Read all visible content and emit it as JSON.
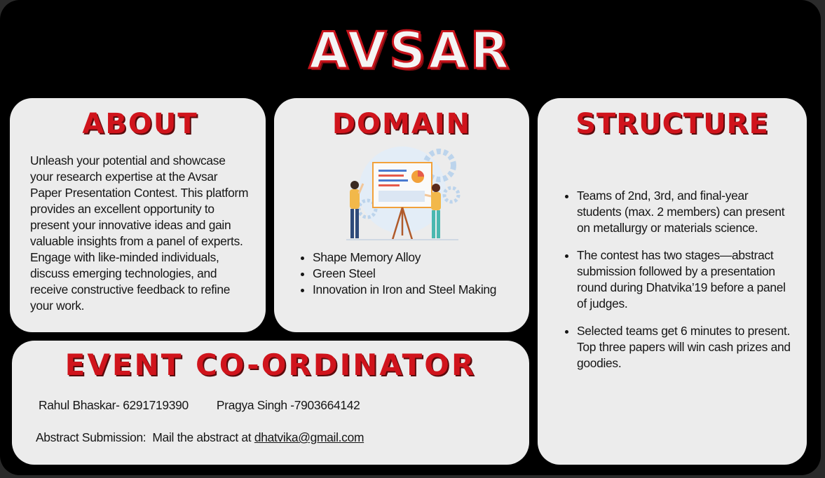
{
  "title": "AVSAR",
  "about": {
    "heading": "ABOUT",
    "text": "Unleash your potential and showcase your research expertise at the Avsar Paper Presentation Contest. This platform provides an excellent opportunity to present your innovative ideas and gain valuable insights from a panel of experts. Engage with like-minded individuals, discuss emerging technologies, and receive constructive feedback to refine your work."
  },
  "domain": {
    "heading": "DOMAIN",
    "items": [
      "Shape Memory Alloy",
      "Green Steel",
      "Innovation in Iron and Steel Making"
    ]
  },
  "structure": {
    "heading": "STRUCTURE",
    "items": [
      "Teams of 2nd, 3rd, and final-year students (max. 2 members) can present on metallurgy or materials science.",
      "The contest has two stages—abstract submission followed by a presentation round during Dhatvika’19 before a panel of judges.",
      "Selected teams get 6 minutes to present. Top three papers will win cash prizes and goodies."
    ]
  },
  "coordinator": {
    "heading": "EVENT CO-ORDINATOR",
    "contact1": "Rahul Bhaskar- 6291719390",
    "contact2": "Pragya Singh -7903664142",
    "abstract_label": "Abstract Submission:  Mail the abstract at ",
    "email": "dhatvika@gmail.com"
  },
  "colors": {
    "accent": "#d0141c",
    "card": "#ececec",
    "background": "#000000"
  },
  "icons": {
    "illustration": "presentation-illustration"
  }
}
